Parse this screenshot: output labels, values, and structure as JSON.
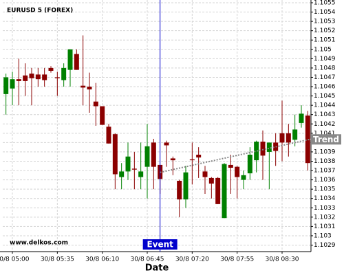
{
  "chart_data": {
    "type": "candlestick",
    "title": "EURUSD 5 (FOREX)",
    "watermark": "www.delkos.com",
    "x_label": "Date",
    "x": [
      "30/8 04:55",
      "30/8 05:00",
      "30/8 05:05",
      "30/8 05:10",
      "30/8 05:15",
      "30/8 05:20",
      "30/8 05:25",
      "30/8 05:30",
      "30/8 05:35",
      "30/8 05:40",
      "30/8 05:45",
      "30/8 05:50",
      "30/8 05:55",
      "30/8 06:00",
      "30/8 06:05",
      "30/8 06:10",
      "30/8 06:15",
      "30/8 06:20",
      "30/8 06:25",
      "30/8 06:30",
      "30/8 06:35",
      "30/8 06:40",
      "30/8 06:45",
      "30/8 06:50",
      "30/8 06:55",
      "30/8 07:00",
      "30/8 07:05",
      "30/8 07:10",
      "30/8 07:15",
      "30/8 07:20",
      "30/8 07:25",
      "30/8 07:30",
      "30/8 07:35",
      "30/8 07:40",
      "30/8 07:45",
      "30/8 07:50",
      "30/8 07:55",
      "30/8 08:00",
      "30/8 08:05",
      "30/8 08:10",
      "30/8 08:15",
      "30/8 08:20",
      "30/8 08:25",
      "30/8 08:30",
      "30/8 08:35",
      "30/8 08:40",
      "30/8 08:45",
      "30/8 08:50"
    ],
    "open": [
      1.10452,
      1.10458,
      1.10468,
      1.10472,
      1.10474,
      1.10473,
      1.10473,
      1.1048,
      1.1047,
      1.10467,
      1.10478,
      1.10495,
      1.10461,
      1.1046,
      1.10444,
      1.10439,
      1.10417,
      1.10409,
      1.10363,
      1.10369,
      1.10372,
      1.10363,
      1.10374,
      1.104,
      1.10376,
      1.104,
      1.10383,
      1.10359,
      1.10339,
      1.10382,
      1.10387,
      1.10369,
      1.10362,
      1.10362,
      1.10319,
      1.10376,
      1.10374,
      1.1036,
      1.10367,
      1.10381,
      1.10401,
      1.1039,
      1.104,
      1.1041,
      1.1041,
      1.10403,
      1.10421,
      1.10429
    ],
    "high": [
      1.10474,
      1.10476,
      1.1049,
      1.10485,
      1.1048,
      1.1048,
      1.1048,
      1.10482,
      1.10476,
      1.10485,
      1.105,
      1.105,
      1.10515,
      1.10475,
      1.10464,
      1.10439,
      1.1042,
      1.1041,
      1.10378,
      1.104,
      1.1039,
      1.104,
      1.1042,
      1.10404,
      1.10376,
      1.10402,
      1.10385,
      1.1036,
      1.10375,
      1.104,
      1.10395,
      1.10375,
      1.10363,
      1.10363,
      1.10378,
      1.10387,
      1.10375,
      1.1037,
      1.10395,
      1.10402,
      1.10413,
      1.104,
      1.1041,
      1.10445,
      1.1042,
      1.1043,
      1.1044,
      1.10434
    ],
    "low": [
      1.1043,
      1.1044,
      1.1044,
      1.1045,
      1.1044,
      1.1046,
      1.1046,
      1.10475,
      1.1045,
      1.1046,
      1.1046,
      1.10478,
      1.1044,
      1.10432,
      1.10418,
      1.10419,
      1.10399,
      1.1035,
      1.1035,
      1.1036,
      1.1035,
      1.1035,
      1.1034,
      1.1035,
      1.10345,
      1.10374,
      1.10365,
      1.1032,
      1.1033,
      1.10355,
      1.10362,
      1.10345,
      1.1034,
      1.10334,
      1.10319,
      1.10345,
      1.1034,
      1.1035,
      1.1036,
      1.10368,
      1.1036,
      1.1035,
      1.10375,
      1.1038,
      1.10385,
      1.10396,
      1.10416,
      1.1037
    ],
    "close": [
      1.1047,
      1.10468,
      1.10466,
      1.10466,
      1.10469,
      1.10468,
      1.10467,
      1.10477,
      1.10469,
      1.1048,
      1.105,
      1.10478,
      1.10459,
      1.10457,
      1.10439,
      1.10419,
      1.10399,
      1.10366,
      1.10369,
      1.10385,
      1.10371,
      1.10369,
      1.10396,
      1.10374,
      1.10361,
      1.10397,
      1.10381,
      1.10339,
      1.10368,
      1.10381,
      1.10384,
      1.10363,
      1.10356,
      1.10334,
      1.10377,
      1.10373,
      1.10363,
      1.10365,
      1.10387,
      1.10401,
      1.10386,
      1.104,
      1.10391,
      1.104,
      1.104,
      1.10414,
      1.10431,
      1.10378
    ],
    "up_color": "#008000",
    "down_color": "#8b0000",
    "xticks": [
      "30/8 05:00",
      "30/8 05:35",
      "30/8 06:10",
      "30/8 06:45",
      "30/8 07:20",
      "30/8 07:55",
      "30/8 08:30"
    ],
    "ylim": [
      1.10283,
      1.1055
    ],
    "yticks": [
      1.1029,
      1.103,
      1.1031,
      1.1032,
      1.1033,
      1.1034,
      1.1035,
      1.1036,
      1.1037,
      1.1038,
      1.1039,
      1.104,
      1.1041,
      1.1042,
      1.1043,
      1.1044,
      1.1045,
      1.1046,
      1.1047,
      1.1048,
      1.1049,
      1.105,
      1.1051,
      1.1052,
      1.1053,
      1.1054,
      1.1055
    ],
    "grid": true,
    "event": {
      "label": "Event",
      "x": "30/8 06:55",
      "color": "#0000cc"
    },
    "trend": {
      "label": "Trend",
      "x": [
        "30/8 06:55",
        "30/8 08:50"
      ],
      "y": [
        1.10368,
        1.10403
      ],
      "color": "#888888"
    }
  }
}
